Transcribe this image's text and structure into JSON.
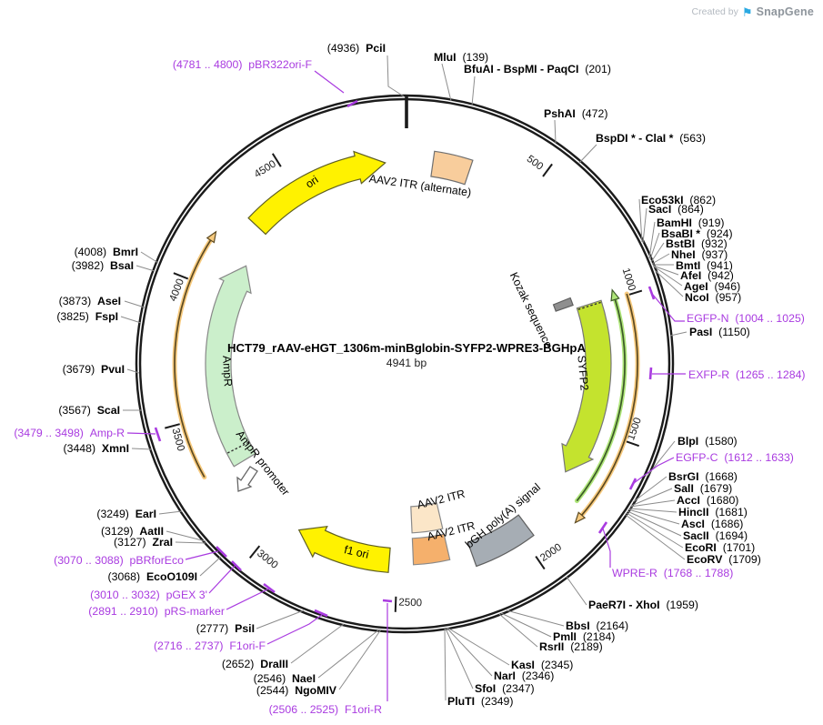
{
  "watermark": {
    "created_by": "Created by",
    "brand": "SnapGene"
  },
  "plasmid": {
    "title": "HCT79_rAAV-eHGT_1306m-minBglobin-SYFP2-WPRE3-BGHpA",
    "length": "4941 bp"
  },
  "scale_ticks": [
    "500",
    "1000",
    "1500",
    "2000",
    "2500",
    "3000",
    "3500",
    "4000",
    "4500"
  ],
  "restriction_sites": [
    {
      "name": "PciI",
      "pos": "(4936)"
    },
    {
      "name": "MluI",
      "pos": "(139)"
    },
    {
      "name": "BfuAI - BspMI - PaqCI",
      "pos": "(201)"
    },
    {
      "name": "PshAI",
      "pos": "(472)"
    },
    {
      "name": "BspDI * - ClaI *",
      "pos": "(563)"
    },
    {
      "name": "Eco53kI",
      "pos": "(862)"
    },
    {
      "name": "SacI",
      "pos": "(864)"
    },
    {
      "name": "BamHI",
      "pos": "(919)"
    },
    {
      "name": "BsaBI *",
      "pos": "(924)"
    },
    {
      "name": "BstBI",
      "pos": "(932)"
    },
    {
      "name": "NheI",
      "pos": "(937)"
    },
    {
      "name": "BmtI",
      "pos": "(941)"
    },
    {
      "name": "AfeI",
      "pos": "(942)"
    },
    {
      "name": "AgeI",
      "pos": "(946)"
    },
    {
      "name": "NcoI",
      "pos": "(957)"
    },
    {
      "name": "PasI",
      "pos": "(1150)"
    },
    {
      "name": "BlpI",
      "pos": "(1580)"
    },
    {
      "name": "BsrGI",
      "pos": "(1668)"
    },
    {
      "name": "SalI",
      "pos": "(1679)"
    },
    {
      "name": "AccI",
      "pos": "(1680)"
    },
    {
      "name": "HincII",
      "pos": "(1681)"
    },
    {
      "name": "AscI",
      "pos": "(1686)"
    },
    {
      "name": "SacII",
      "pos": "(1694)"
    },
    {
      "name": "EcoRI",
      "pos": "(1701)"
    },
    {
      "name": "EcoRV",
      "pos": "(1709)"
    },
    {
      "name": "PaeR7I - XhoI",
      "pos": "(1959)"
    },
    {
      "name": "BbsI",
      "pos": "(2164)"
    },
    {
      "name": "PmlI",
      "pos": "(2184)"
    },
    {
      "name": "RsrII",
      "pos": "(2189)"
    },
    {
      "name": "KasI",
      "pos": "(2345)"
    },
    {
      "name": "NarI",
      "pos": "(2346)"
    },
    {
      "name": "SfoI",
      "pos": "(2347)"
    },
    {
      "name": "PluTI",
      "pos": "(2349)"
    },
    {
      "name": "NgoMIV",
      "pos": "(2544)"
    },
    {
      "name": "NaeI",
      "pos": "(2546)"
    },
    {
      "name": "DraIII",
      "pos": "(2652)"
    },
    {
      "name": "PsiI",
      "pos": "(2777)"
    },
    {
      "name": "EcoO109I",
      "pos": "(3068)"
    },
    {
      "name": "ZraI",
      "pos": "(3127)"
    },
    {
      "name": "AatII",
      "pos": "(3129)"
    },
    {
      "name": "EarI",
      "pos": "(3249)"
    },
    {
      "name": "XmnI",
      "pos": "(3448)"
    },
    {
      "name": "ScaI",
      "pos": "(3567)"
    },
    {
      "name": "PvuI",
      "pos": "(3679)"
    },
    {
      "name": "FspI",
      "pos": "(3825)"
    },
    {
      "name": "AseI",
      "pos": "(3873)"
    },
    {
      "name": "BsaI",
      "pos": "(3982)"
    },
    {
      "name": "BmrI",
      "pos": "(4008)"
    }
  ],
  "primers": [
    {
      "name": "pBR322ori-F",
      "range": "(4781 .. 4800)"
    },
    {
      "name": "EGFP-N",
      "range": "(1004 .. 1025)"
    },
    {
      "name": "EXFP-R",
      "range": "(1265 .. 1284)"
    },
    {
      "name": "EGFP-C",
      "range": "(1612 .. 1633)"
    },
    {
      "name": "WPRE-R",
      "range": "(1768 .. 1788)"
    },
    {
      "name": "F1ori-R",
      "range": "(2506 .. 2525)"
    },
    {
      "name": "F1ori-F",
      "range": "(2716 .. 2737)"
    },
    {
      "name": "pRS-marker",
      "range": "(2891 .. 2910)"
    },
    {
      "name": "pGEX 3'",
      "range": "(3010 .. 3032)"
    },
    {
      "name": "pBRforEco",
      "range": "(3070 .. 3088)"
    },
    {
      "name": "Amp-R",
      "range": "(3479 .. 3498)"
    }
  ],
  "features": [
    {
      "label": "ori",
      "color": "#fff200"
    },
    {
      "label": "AAV2 ITR (alternate)",
      "color": "#f8cd9c"
    },
    {
      "label": "Kozak sequence",
      "color": "#8f8f8f"
    },
    {
      "label": "SYFP2",
      "color": "#c4e32e"
    },
    {
      "label": "bGH poly(A) signal",
      "color": "#a6adb4"
    },
    {
      "label": "AAV2 ITR",
      "color": "#fbe6c8"
    },
    {
      "label": "AAV2 ITR",
      "color": "#f5b06c"
    },
    {
      "label": "f1 ori",
      "color": "#fff200"
    },
    {
      "label": "AmpR",
      "color": "#cbefcb"
    },
    {
      "label": "AmpR promoter",
      "color": "#ffffff"
    }
  ],
  "colors": {
    "backbone": "#1b1b1b",
    "leader_line": "#8c8c8c",
    "primer_purple": "#a93be0",
    "thin_arc_orange_halo": "#f7ca7e",
    "thin_arc_orange_core": "#5c4a22",
    "thin_arc_green_halo": "#aee579",
    "thin_arc_green_core": "#3c5a28",
    "snapgene_logo_blue": "#2aa9e2"
  }
}
